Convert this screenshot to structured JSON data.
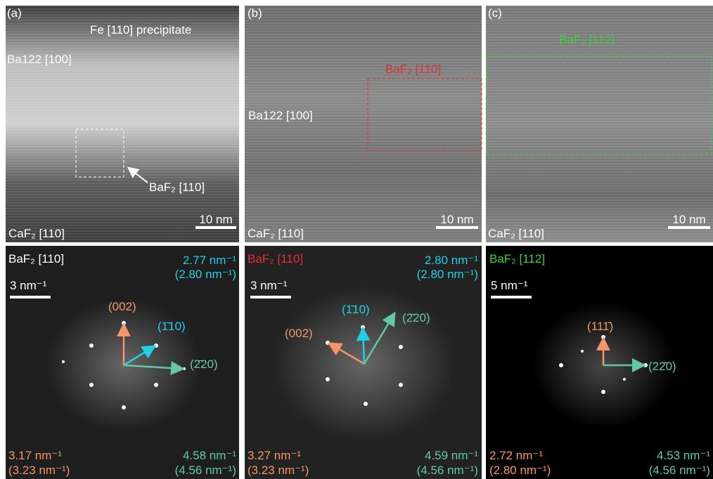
{
  "panels": [
    {
      "label": "(a)",
      "annotations": [
        "Fe [110] precipitate",
        "Ba122 [100]",
        "BaF₂ [110]",
        "CaF₂ [110]"
      ],
      "scale_bar": "10 nm"
    },
    {
      "label": "(b)",
      "annotations": [
        "BaF₂ [110]",
        "Ba122 [100]",
        "CaF₂ [110]"
      ],
      "scale_bar": "10 nm"
    },
    {
      "label": "(c)",
      "annotations": [
        "BaF₂ [112]",
        "CaF₂ [110]"
      ],
      "scale_bar": "10 nm"
    }
  ],
  "fft_panels": [
    {
      "title": "BaF₂ [110]",
      "scale_bar": "3 nm⁻¹",
      "spots": [
        "(002)",
        "(1̄10)",
        "(2̄20)"
      ],
      "top_right": [
        "2.77 nm⁻¹",
        "(2.80 nm⁻¹)"
      ],
      "bottom_left": [
        "3.17 nm⁻¹",
        "(3.23 nm⁻¹)"
      ],
      "bottom_right": [
        "4.58 nm⁻¹",
        "(4.56 nm⁻¹)"
      ]
    },
    {
      "title": "BaF₂ [110]",
      "scale_bar": "3 nm⁻¹",
      "spots": [
        "(002)",
        "(1̄10)",
        "(2̄20)"
      ],
      "top_right": [
        "2.80 nm⁻¹",
        "(2.80 nm⁻¹)"
      ],
      "bottom_left": [
        "3.27 nm⁻¹",
        "(3.23 nm⁻¹)"
      ],
      "bottom_right": [
        "4.59 nm⁻¹",
        "(4.56 nm⁻¹)"
      ]
    },
    {
      "title": "BaF₂ [112]",
      "scale_bar": "5 nm⁻¹",
      "spots": [
        "(111̄)",
        "(22̄0)"
      ],
      "bottom_left": [
        "2.72 nm⁻¹",
        "(2.80 nm⁻¹)"
      ],
      "bottom_right": [
        "4.53 nm⁻¹",
        "(4.56 nm⁻¹)"
      ]
    }
  ]
}
